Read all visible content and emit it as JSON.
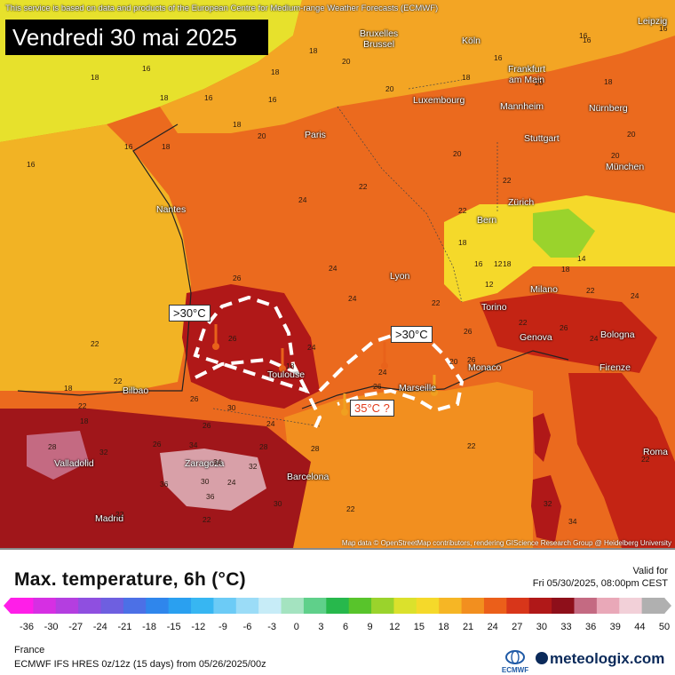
{
  "header": {
    "notice": "This service is based on data and products of the European Centre for Medium-range Weather Forecasts (ECMWF)",
    "date": "Vendredi 30 mai 2025",
    "attribution": "Map data © OpenStreetMap contributors, rendering GIScience Research Group @ Heidelberg University"
  },
  "cities": {
    "bruxelles": "Bruxelles\nBrussel",
    "koln": "Köln",
    "leipzig": "Leipzig",
    "frankfurt": "Frankfurt\nam Main",
    "luxembourg": "Luxembourg",
    "mannheim": "Mannheim",
    "nurnberg": "Nürnberg",
    "paris": "Paris",
    "stuttgart": "Stuttgart",
    "munchen": "München",
    "nantes": "Nantes",
    "bern": "Bern",
    "zurich": "Zürich",
    "lyon": "Lyon",
    "milano": "Milano",
    "torino": "Torino",
    "genova": "Genova",
    "bologna": "Bologna",
    "toulouse": "Toulouse",
    "monaco": "Monaco",
    "marseille": "Marseille",
    "firenze": "Firenze",
    "bilbao": "Bilbao",
    "valladolid": "Valladolid",
    "zaragoza": "Zaragoza",
    "barcelona": "Barcelona",
    "madrid": "Madrid",
    "roma": "Roma"
  },
  "callouts": {
    "west": ">30°C",
    "southeast": ">30°C",
    "question": "35°C ?"
  },
  "temperature_labels": [
    "18",
    "16",
    "16",
    "18",
    "18",
    "16",
    "16",
    "20",
    "20",
    "18",
    "18",
    "16",
    "18",
    "20",
    "18",
    "16",
    "16",
    "18",
    "20",
    "20",
    "22",
    "24",
    "22",
    "20",
    "20",
    "22",
    "24",
    "26",
    "26",
    "24",
    "24",
    "22",
    "24",
    "26",
    "18",
    "22",
    "22",
    "26",
    "30",
    "26",
    "24",
    "26",
    "34",
    "32",
    "30",
    "28",
    "22",
    "22",
    "18",
    "18",
    "16",
    "16",
    "14",
    "12",
    "12",
    "16",
    "18",
    "18",
    "18",
    "20",
    "22",
    "22",
    "26",
    "26",
    "24",
    "26",
    "24",
    "22",
    "32",
    "34",
    "36",
    "30",
    "28",
    "28",
    "22",
    "22",
    "22",
    "24",
    "32",
    "36",
    "34"
  ],
  "legend": {
    "title": "Max. temperature, 6h (°C)",
    "valid_label": "Valid for",
    "valid_value": "Fri 05/30/2025, 08:00pm CEST",
    "scale_values": [
      "-36",
      "-30",
      "-27",
      "-24",
      "-21",
      "-18",
      "-15",
      "-12",
      "-9",
      "-6",
      "-3",
      "0",
      "3",
      "6",
      "9",
      "12",
      "15",
      "18",
      "21",
      "24",
      "27",
      "30",
      "33",
      "36",
      "39",
      "44",
      "50"
    ],
    "region": "France",
    "model": "ECMWF IFS HRES 0z/12z (15 days) from  05/26/2025/00z",
    "ecmwf_label": "ECMWF",
    "brand": "meteologix.com"
  },
  "colors": {
    "cool": "#f4e72a",
    "warm": "#f08a1a",
    "hot": "#e8591b",
    "very_hot": "#c22a14",
    "extreme": "#8a1010",
    "peak": "#d8a0a8",
    "scale": [
      "#ff1ee8",
      "#d62fe3",
      "#b43ee0",
      "#8f4fe0",
      "#6e5fe0",
      "#4c70e6",
      "#2f86ec",
      "#2aa0f0",
      "#37b6f2",
      "#6ccbf6",
      "#9bdcf7",
      "#c7ecf7",
      "#a4e3c0",
      "#5fd08a",
      "#27b84c",
      "#58c42b",
      "#9ad32c",
      "#dbe12c",
      "#f5d92a",
      "#f6b625",
      "#f28f1f",
      "#eb5f1a",
      "#d8361a",
      "#b01818",
      "#8e0f1a",
      "#c46a82",
      "#e9a8b8",
      "#f2d0d8",
      "#b0b0b0"
    ]
  }
}
